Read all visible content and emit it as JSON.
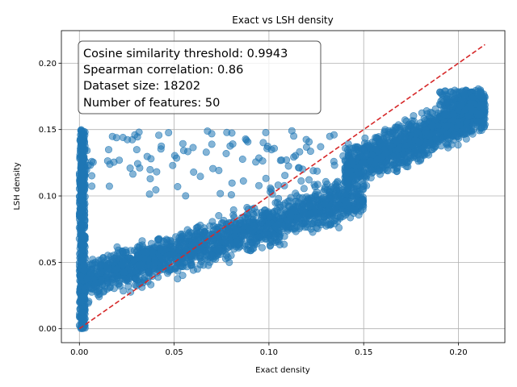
{
  "chart_data": {
    "type": "scatter",
    "title": "Exact vs LSH density",
    "xlabel": "Exact density",
    "ylabel": "LSH density",
    "xlim": [
      -0.0095,
      0.2245
    ],
    "ylim": [
      -0.0105,
      0.2245
    ],
    "xticks": [
      0.0,
      0.05,
      0.1,
      0.15,
      0.2
    ],
    "yticks": [
      0.0,
      0.05,
      0.1,
      0.15,
      0.2
    ],
    "xtick_labels": [
      "0.00",
      "0.05",
      "0.10",
      "0.15",
      "0.20"
    ],
    "ytick_labels": [
      "0.00",
      "0.05",
      "0.10",
      "0.15",
      "0.20"
    ],
    "grid": true,
    "annotation": {
      "lines": [
        "Cosine similarity threshold: 0.9943",
        "Spearman correlation: 0.86",
        "Dataset size: 18202",
        "Number of features: 50"
      ],
      "placement": "top-left"
    },
    "reference_line": {
      "style": "dashed",
      "color": "#d62728",
      "from": [
        0.0,
        0.0
      ],
      "to": [
        0.214,
        0.214
      ]
    },
    "point_color": "#1f77b4",
    "point_alpha": 0.55,
    "clusters": [
      {
        "x_range": [
          0.0,
          0.003
        ],
        "y_range": [
          0.0,
          0.15
        ],
        "approx_points": 500
      },
      {
        "x_range": [
          0.0,
          0.15
        ],
        "y_trend": [
          0.035,
          0.1
        ],
        "spread": 0.012,
        "approx_points": 1800
      },
      {
        "x_range": [
          0.14,
          0.214
        ],
        "y_trend": [
          0.12,
          0.165
        ],
        "spread": 0.012,
        "approx_points": 1300
      },
      {
        "x_range": [
          0.0,
          0.14
        ],
        "y_range": [
          0.1,
          0.15
        ],
        "approx_points": 120
      },
      {
        "x_range": [
          0.19,
          0.214
        ],
        "y_range": [
          0.16,
          0.18
        ],
        "approx_points": 180
      }
    ]
  }
}
